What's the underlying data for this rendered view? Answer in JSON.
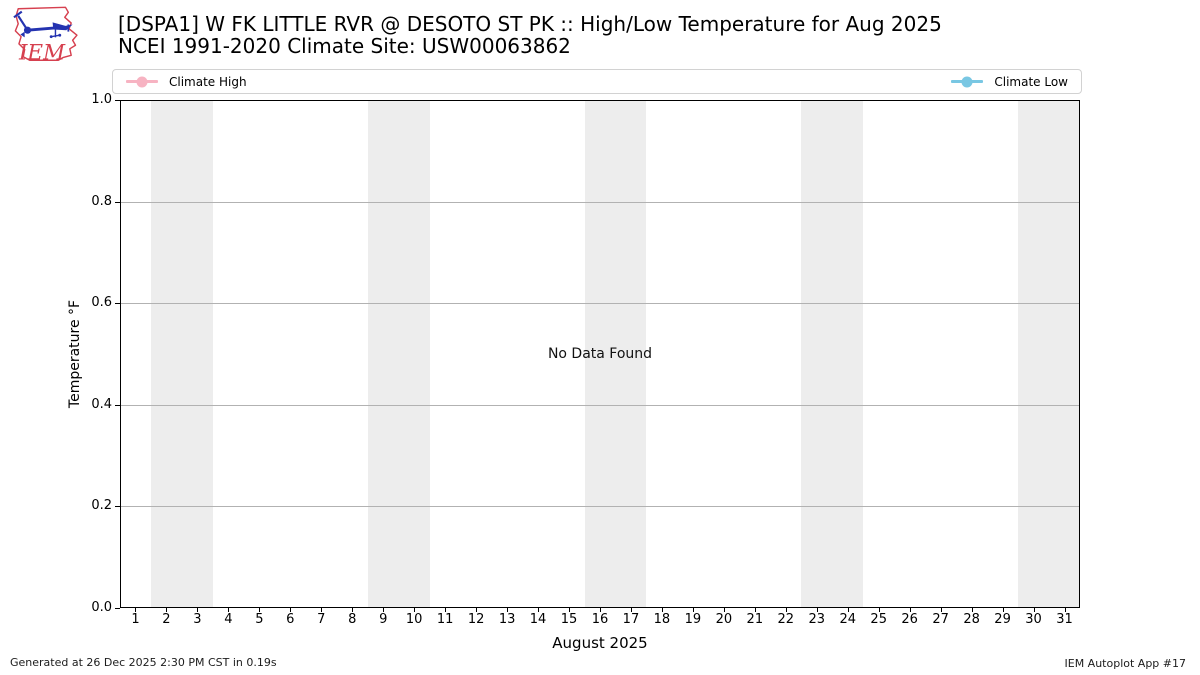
{
  "logo": {
    "text": "IEM",
    "red": "#d6404f",
    "blue": "#2433b0"
  },
  "footer": {
    "left": "Generated at 26 Dec 2025 2:30 PM CST in 0.19s",
    "right": "IEM Autoplot App #17"
  },
  "chart_data": {
    "type": "line",
    "title": "[DSPA1] W FK LITTLE RVR @ DESOTO ST PK :: High/Low Temperature for Aug 2025",
    "subtitle": "NCEI 1991-2020 Climate Site: USW00063862",
    "xlabel": "August 2025",
    "ylabel": "Temperature °F",
    "annotation": "No Data Found",
    "xlim": [
      0.5,
      31.5
    ],
    "ylim": [
      0.0,
      1.0
    ],
    "y_ticks": [
      0.0,
      0.2,
      0.4,
      0.6,
      0.8,
      1.0
    ],
    "x_ticks": [
      1,
      2,
      3,
      4,
      5,
      6,
      7,
      8,
      9,
      10,
      11,
      12,
      13,
      14,
      15,
      16,
      17,
      18,
      19,
      20,
      21,
      22,
      23,
      24,
      25,
      26,
      27,
      28,
      29,
      30,
      31
    ],
    "grid": "horizontal-only",
    "legend_position": "top-full-width",
    "series": [
      {
        "name": "Climate High",
        "color": "#f7b3c2",
        "x": [],
        "values": []
      },
      {
        "name": "Climate Low",
        "color": "#79c7e3",
        "x": [],
        "values": []
      }
    ],
    "weekend_bands_x": [
      [
        1.5,
        3.5
      ],
      [
        8.5,
        10.5
      ],
      [
        15.5,
        17.5
      ],
      [
        22.5,
        24.5
      ],
      [
        29.5,
        31.5
      ]
    ],
    "band_color": "#ededed"
  }
}
